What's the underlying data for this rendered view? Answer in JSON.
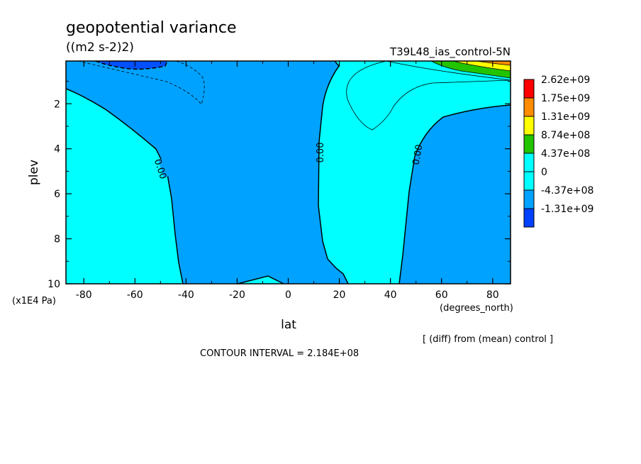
{
  "chart_data": {
    "type": "contour",
    "title": "geopotential variance",
    "units": "((m2 s-2)2)",
    "run_label": "T39L48_ias_control-5N",
    "xlabel": "lat",
    "x_units": "(degrees_north)",
    "ylabel": "plev",
    "y_units": "(x1E4 Pa)",
    "xlim": [
      -87,
      87
    ],
    "ylim": [
      10,
      0.1
    ],
    "x_ticks": [
      "-80",
      "-60",
      "-40",
      "-20",
      "0",
      "20",
      "40",
      "60",
      "80"
    ],
    "x_tick_values": [
      -80,
      -60,
      -40,
      -20,
      0,
      20,
      40,
      60,
      80
    ],
    "y_ticks": [
      "2",
      "4",
      "6",
      "8",
      "10"
    ],
    "y_tick_values": [
      2,
      4,
      6,
      8,
      10
    ],
    "contour_labels": [
      "0.00",
      "0.00",
      "0.00"
    ],
    "legend": {
      "levels": [
        "2.62e+09",
        "1.75e+09",
        "1.31e+09",
        "8.74e+08",
        "4.37e+08",
        "0",
        "-4.37e+08",
        "-1.31e+09"
      ],
      "colors": [
        "#ff0000",
        "#ff8c00",
        "#ffff00",
        "#22c400",
        "#00ffff",
        "#00ffff",
        "#00a2ff",
        "#0040ff"
      ]
    },
    "region_colors": {
      "negative": "#00a2ff",
      "positive": "#00ffff",
      "strong_negative": "#0050ff",
      "high_1": "#22c400",
      "high_2": "#ffff00",
      "high_3": "#ff8c00"
    },
    "note": "[ (diff) from (mean) control ]",
    "contour_interval": "CONTOUR INTERVAL = 2.184E+08"
  }
}
